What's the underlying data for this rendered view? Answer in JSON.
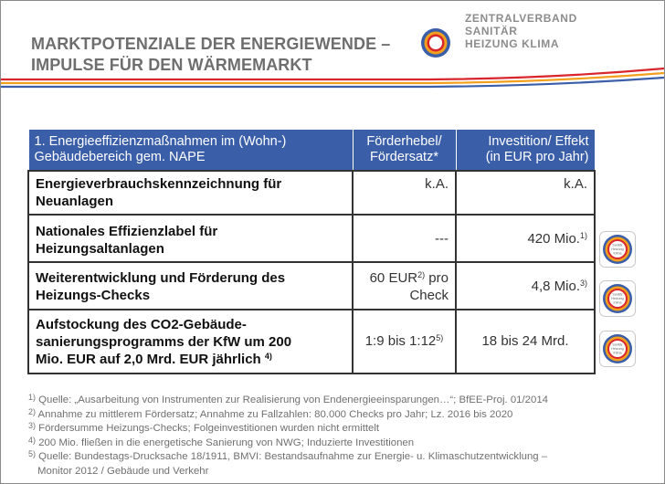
{
  "title": {
    "line1": "MARKTPOTENZIALE DER ENERGIEWENDE –",
    "line2": "IMPULSE FÜR DEN WÄRMEMARKT"
  },
  "logo": {
    "line1": "ZENTRALVERBAND",
    "line2": "SANITÄR",
    "line3": "HEIZUNG KLIMA"
  },
  "badge_text": {
    "line1": "Sanitär",
    "line2": "Heizung",
    "line3": "Klima"
  },
  "table": {
    "headers": {
      "col1_line1": "1. Energieeffizienzmaßnahmen im (Wohn-)",
      "col1_line2": "Gebäudebereich gem. NAPE",
      "col2_line1": "Förderhebel/",
      "col2_line2": "Fördersatz*",
      "col3_line1": "Investition/ Effekt",
      "col3_line2": "(in EUR pro Jahr)"
    },
    "rows": [
      {
        "name_line1": "Energieverbrauchskennzeichnung für",
        "name_line2": "Neuanlagen",
        "lever": "k.A.",
        "effect": "k.A."
      },
      {
        "name_line1": "Nationales Effizienzlabel für",
        "name_line2": "Heizungsaltanlagen",
        "lever": "---",
        "effect": "420 Mio.",
        "effect_sup": "1)"
      },
      {
        "name_line1": "Weiterentwicklung und Förderung des",
        "name_line2": "Heizungs-Checks",
        "lever_line1": "60 EUR",
        "lever_sup": "2)",
        "lever_line1b": " pro",
        "lever_line2": "Check",
        "effect": "4,8 Mio.",
        "effect_sup": "3)"
      },
      {
        "name_line1": "Aufstockung des CO2-Gebäude-",
        "name_line2": "sanierungsprogramms der KfW um 200",
        "name_line3": "Mio. EUR auf 2,0 Mrd. EUR jährlich",
        "name_sup": "4)",
        "lever": "1:9 bis 1:12",
        "lever_sup": "5)",
        "effect": "18 bis 24 Mrd."
      }
    ]
  },
  "footnotes": [
    {
      "mark": "1)",
      "text": " Quelle: „Ausarbeitung von Instrumenten zur Realisierung von Endenergieeinsparungen…“; BfEE-Proj. 01/2014"
    },
    {
      "mark": "2)",
      "text": " Annahme zu mittlerem Fördersatz; Annahme zu Fallzahlen: 80.000 Checks pro Jahr; Lz. 2016 bis 2020"
    },
    {
      "mark": "3)",
      "text": " Fördersumme Heizungs-Checks; Folgeinvestitionen wurden nicht ermittelt"
    },
    {
      "mark": "4)",
      "text": " 200 Mio. fließen in die energetische Sanierung von NWG; Induzierte Investitionen"
    },
    {
      "mark": "5)",
      "text": " Quelle: Bundestags-Drucksache 18/1911, BMVI: Bestandsaufnahme zur Energie- u. Klimaschutzentwicklung –"
    }
  ],
  "footnote_continuation": "Monitor 2012 / Gebäude und Verkehr",
  "colors": {
    "header_blue": "#3a5ea8",
    "stripe_red": "#d8262c",
    "stripe_orange": "#f2a01e",
    "stripe_blue": "#3a5ea8",
    "title_gray": "#6e6e6e"
  }
}
